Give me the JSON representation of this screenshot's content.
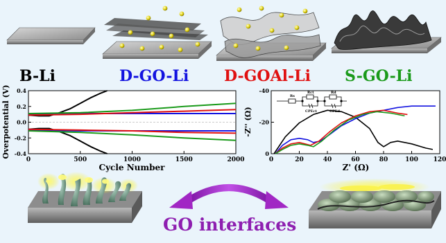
{
  "model_labels": [
    {
      "text": "B-Li",
      "color": "#000000"
    },
    {
      "text": "D-GO-Li",
      "color": "#1313e0"
    },
    {
      "text": "D-GOAl-Li",
      "color": "#e01010"
    },
    {
      "text": "S-GO-Li",
      "color": "#1a9a1a"
    }
  ],
  "footer_text": "GO interfaces",
  "arrow_color": "#a127c4",
  "chart_data": [
    {
      "type": "line",
      "xlabel": "Cycle Number",
      "ylabel": "Overpotential (V)",
      "xlim": [
        0,
        2000
      ],
      "ylim": [
        -0.4,
        0.4
      ],
      "xticks": [
        "0",
        "500",
        "1000",
        "1500",
        "2000"
      ],
      "yticks": [
        "0.4",
        "0.2",
        "0.0",
        "-0.2",
        "-0.4"
      ],
      "series": [
        {
          "color": "#000000",
          "x": [
            0,
            100,
            200,
            300,
            400,
            500,
            600,
            700,
            760
          ],
          "y": [
            0.09,
            0.08,
            0.08,
            0.12,
            0.17,
            0.24,
            0.31,
            0.37,
            0.4
          ]
        },
        {
          "color": "#000000",
          "x": [
            0,
            100,
            200,
            300,
            400,
            500,
            600,
            700,
            760
          ],
          "y": [
            -0.09,
            -0.08,
            -0.08,
            -0.12,
            -0.17,
            -0.24,
            -0.31,
            -0.37,
            -0.4
          ]
        },
        {
          "color": "#1313e0",
          "x": [
            0,
            500,
            1000,
            1500,
            2000
          ],
          "y": [
            0.1,
            0.11,
            0.11,
            0.11,
            0.11
          ]
        },
        {
          "color": "#1313e0",
          "x": [
            0,
            500,
            1000,
            1500,
            2000
          ],
          "y": [
            -0.1,
            -0.11,
            -0.11,
            -0.11,
            -0.11
          ]
        },
        {
          "color": "#e01010",
          "x": [
            0,
            500,
            1000,
            1500,
            2000
          ],
          "y": [
            0.09,
            0.1,
            0.12,
            0.14,
            0.16
          ]
        },
        {
          "color": "#e01010",
          "x": [
            0,
            500,
            1000,
            1500,
            2000
          ],
          "y": [
            -0.09,
            -0.1,
            -0.11,
            -0.13,
            -0.14
          ]
        },
        {
          "color": "#1a9a1a",
          "x": [
            0,
            500,
            1000,
            1500,
            2000
          ],
          "y": [
            0.11,
            0.12,
            0.15,
            0.2,
            0.24
          ]
        },
        {
          "color": "#1a9a1a",
          "x": [
            0,
            500,
            1000,
            1500,
            2000
          ],
          "y": [
            -0.11,
            -0.13,
            -0.16,
            -0.2,
            -0.23
          ]
        }
      ]
    },
    {
      "type": "line",
      "xlabel": "Z' (Ω)",
      "ylabel": "-Z'' (Ω)",
      "xlim": [
        0,
        120
      ],
      "ylim": [
        0,
        45
      ],
      "xticks": [
        "0",
        "20",
        "40",
        "60",
        "80",
        "100",
        "120"
      ],
      "yticks": [
        "-40",
        "-20",
        "0"
      ],
      "circuit_labels": [
        "Rs",
        "Rct",
        "CPEct",
        "Rd",
        "CPEd"
      ],
      "series": [
        {
          "color": "#000000",
          "x": [
            2,
            10,
            20,
            30,
            40,
            50,
            60,
            70,
            76,
            80,
            85,
            90,
            95,
            100,
            110,
            115
          ],
          "y": [
            0,
            12,
            22,
            28,
            31,
            30,
            26,
            18,
            8,
            5,
            8,
            9,
            8,
            7,
            4,
            3
          ]
        },
        {
          "color": "#1313e0",
          "x": [
            3,
            8,
            14,
            20,
            26,
            30,
            35,
            42,
            50,
            60,
            70,
            80,
            90,
            100,
            110,
            117
          ],
          "y": [
            0,
            6,
            10,
            11,
            10,
            8,
            9,
            14,
            20,
            25,
            29,
            31,
            33,
            34,
            34,
            34
          ]
        },
        {
          "color": "#e01010",
          "x": [
            3,
            8,
            14,
            20,
            24,
            28,
            34,
            42,
            50,
            60,
            70,
            80,
            90,
            97
          ],
          "y": [
            0,
            4,
            7,
            8,
            7,
            6,
            9,
            16,
            22,
            27,
            30,
            31,
            29,
            28
          ]
        },
        {
          "color": "#1a9a1a",
          "x": [
            3,
            8,
            14,
            20,
            26,
            30,
            36,
            45,
            55,
            65,
            75,
            85,
            95
          ],
          "y": [
            0,
            3,
            6,
            7,
            6,
            5,
            9,
            17,
            24,
            28,
            30,
            29,
            27
          ]
        }
      ]
    }
  ]
}
